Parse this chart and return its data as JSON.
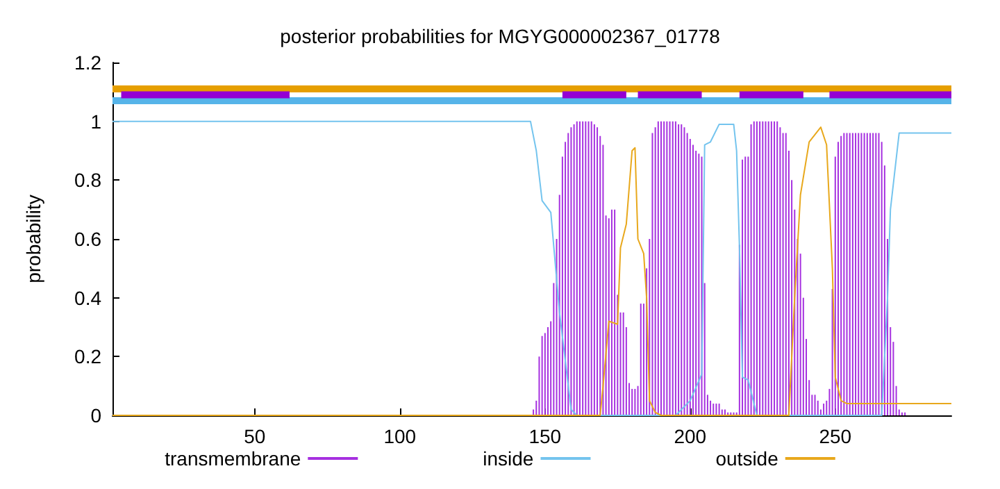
{
  "chart_data": {
    "type": "line",
    "title": "posterior probabilities for MGYG000002367_01778",
    "ylabel": "probability",
    "xlim": [
      1,
      290
    ],
    "xticks": [
      50,
      100,
      150,
      200,
      250
    ],
    "ylim": [
      0,
      1.2
    ],
    "yticks": [
      0,
      0.2,
      0.4,
      0.6,
      0.8,
      1,
      1.2
    ],
    "grid": false,
    "legend": "bottom",
    "marker": "none",
    "series": [
      {
        "name": "transmembrane",
        "type": "bar",
        "color": "#a630e0",
        "x": [
          140,
          141,
          142,
          143,
          144,
          145,
          146,
          147,
          148,
          149,
          150,
          151,
          152,
          153,
          154,
          155,
          156,
          157,
          158,
          159,
          160,
          161,
          162,
          163,
          164,
          165,
          166,
          167,
          168,
          169,
          170,
          171,
          172,
          173,
          174,
          175,
          176,
          177,
          178,
          179,
          180,
          181,
          182,
          183,
          184,
          185,
          186,
          187,
          188,
          189,
          190,
          191,
          192,
          193,
          194,
          195,
          196,
          197,
          198,
          199,
          200,
          201,
          202,
          203,
          204,
          205,
          206,
          207,
          208,
          209,
          210,
          211,
          212,
          213,
          214,
          215,
          216,
          217,
          218,
          219,
          220,
          221,
          222,
          223,
          224,
          225,
          226,
          227,
          228,
          229,
          230,
          231,
          232,
          233,
          234,
          235,
          236,
          237,
          238,
          239,
          240,
          241,
          242,
          243,
          244,
          245,
          246,
          247,
          248,
          249,
          250,
          251,
          252,
          253,
          254,
          255,
          256,
          257,
          258,
          259,
          260,
          261,
          262,
          263,
          264,
          265,
          266,
          267,
          268,
          269,
          270,
          271,
          272,
          273,
          274,
          275,
          276,
          277,
          278,
          279,
          280
        ],
        "values": [
          0,
          0,
          0,
          0,
          0,
          0,
          0.02,
          0.05,
          0.2,
          0.27,
          0.28,
          0.3,
          0.32,
          0.45,
          0.6,
          0.75,
          0.88,
          0.93,
          0.96,
          0.98,
          0.99,
          1,
          1,
          1,
          1,
          1,
          1,
          0.99,
          0.98,
          0.95,
          0.92,
          0.68,
          0.67,
          0.7,
          0.7,
          0.41,
          0.35,
          0.35,
          0.3,
          0.11,
          0.09,
          0.09,
          0.1,
          0.38,
          0.38,
          0.5,
          0.6,
          0.96,
          0.98,
          1,
          1,
          1,
          1,
          1,
          1,
          1,
          0.99,
          0.99,
          0.98,
          0.96,
          0.94,
          0.92,
          0.9,
          0.89,
          0.88,
          0.45,
          0.07,
          0.05,
          0.04,
          0.04,
          0.04,
          0.02,
          0.02,
          0.01,
          0.01,
          0.01,
          0.01,
          0.58,
          0.87,
          0.88,
          0.88,
          0.99,
          1,
          1,
          1,
          1,
          1,
          1,
          1,
          1,
          1,
          0.98,
          0.96,
          0.96,
          0.9,
          0.8,
          0.7,
          0.6,
          0.55,
          0.4,
          0.26,
          0.12,
          0.07,
          0.07,
          0.05,
          0.02,
          0.04,
          0.05,
          0.09,
          0.43,
          0.88,
          0.93,
          0.95,
          0.96,
          0.96,
          0.96,
          0.96,
          0.96,
          0.96,
          0.96,
          0.96,
          0.96,
          0.96,
          0.96,
          0.96,
          0.96,
          0.93,
          0.85,
          0.6,
          0.3,
          0.25,
          0.1,
          0.02,
          0.01,
          0.01,
          0,
          0,
          0,
          0,
          0,
          0
        ]
      },
      {
        "name": "inside",
        "color": "#74c4ee",
        "x": [
          1,
          145,
          147,
          149,
          152,
          155,
          159,
          161,
          195,
          200,
          204,
          205,
          207,
          210,
          215,
          216,
          217,
          218,
          220,
          223,
          266,
          268,
          269,
          272,
          290
        ],
        "values": [
          1,
          1,
          0.9,
          0.73,
          0.69,
          0.35,
          0.02,
          0,
          0,
          0.05,
          0.14,
          0.92,
          0.93,
          0.99,
          0.99,
          0.9,
          0.57,
          0.13,
          0.12,
          0,
          0,
          0.4,
          0.7,
          0.96,
          0.96
        ]
      },
      {
        "name": "outside",
        "color": "#e8a81c",
        "x": [
          1,
          169,
          170,
          172,
          175,
          176,
          178,
          180,
          181,
          182,
          184,
          185,
          186,
          188,
          190,
          234,
          236,
          238,
          241,
          245,
          247,
          249,
          250,
          252,
          254,
          290
        ],
        "values": [
          0,
          0,
          0.1,
          0.32,
          0.31,
          0.57,
          0.65,
          0.9,
          0.91,
          0.6,
          0.55,
          0.4,
          0.05,
          0.01,
          0,
          0,
          0.4,
          0.75,
          0.93,
          0.98,
          0.92,
          0.5,
          0.13,
          0.05,
          0.04,
          0.04
        ]
      },
      {
        "color": "#e69f00",
        "x": [
          1,
          290
        ],
        "values": [
          1.11,
          1.11
        ]
      },
      {
        "color": "#56b4e9",
        "x": [
          1,
          290
        ],
        "values": [
          1.07,
          1.07
        ]
      },
      {
        "color": "#9400d3",
        "x": [
          4,
          62,
          100,
          156,
          178,
          180,
          182,
          204,
          210,
          217,
          239,
          244,
          248,
          290
        ],
        "values": [
          1.09,
          1.09,
          null,
          1.09,
          1.09,
          null,
          1.09,
          1.09,
          null,
          1.09,
          1.09,
          null,
          1.09,
          1.09
        ]
      }
    ]
  }
}
